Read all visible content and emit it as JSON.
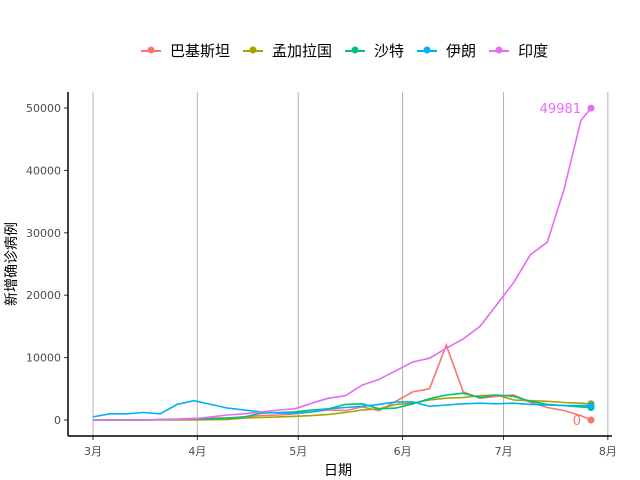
{
  "chart_data": {
    "type": "line",
    "xlabel": "日期",
    "ylabel": "新增确诊病例",
    "x_ticks": [
      "3月",
      "4月",
      "5月",
      "6月",
      "7月",
      "8月"
    ],
    "y_ticks": [
      0,
      10000,
      20000,
      30000,
      40000,
      50000
    ],
    "ylim": [
      0,
      50000
    ],
    "grid": "vertical",
    "legend": "top",
    "x": [
      "03-01",
      "03-06",
      "03-11",
      "03-16",
      "03-21",
      "03-26",
      "03-31",
      "04-05",
      "04-10",
      "04-15",
      "04-20",
      "04-25",
      "04-30",
      "05-05",
      "05-10",
      "05-15",
      "05-20",
      "05-25",
      "05-30",
      "06-04",
      "06-09",
      "06-14",
      "06-19",
      "06-24",
      "06-29",
      "07-04",
      "07-09",
      "07-14",
      "07-19",
      "07-24",
      "07-27"
    ],
    "series": [
      {
        "name": "巴基斯坦",
        "color": "#F8766D",
        "end_label": "0",
        "values": [
          0,
          0,
          0,
          20,
          100,
          150,
          250,
          300,
          300,
          500,
          700,
          800,
          1000,
          1300,
          1600,
          1500,
          2100,
          1500,
          3000,
          4500,
          5000,
          12000,
          4500,
          3500,
          3800,
          4000,
          2800,
          2000,
          1500,
          700,
          0
        ]
      },
      {
        "name": "孟加拉国",
        "color": "#A3A500",
        "values": [
          0,
          0,
          0,
          0,
          5,
          10,
          20,
          50,
          100,
          300,
          400,
          500,
          600,
          700,
          900,
          1200,
          1600,
          1800,
          2500,
          2700,
          3200,
          3500,
          3600,
          3900,
          4000,
          3200,
          3100,
          3000,
          2800,
          2700,
          2600
        ]
      },
      {
        "name": "沙特",
        "color": "#00BF7D",
        "values": [
          0,
          0,
          5,
          20,
          50,
          100,
          150,
          200,
          300,
          500,
          1100,
          1200,
          1300,
          1600,
          1800,
          2500,
          2600,
          1800,
          1900,
          2600,
          3400,
          4000,
          4300,
          3600,
          4000,
          3800,
          3000,
          2500,
          2300,
          2100,
          2000
        ]
      },
      {
        "name": "伊朗",
        "color": "#00B0F6",
        "values": [
          500,
          1000,
          1000,
          1200,
          1000,
          2500,
          3100,
          2500,
          1900,
          1600,
          1300,
          1100,
          1100,
          1300,
          1800,
          2000,
          2200,
          2500,
          2900,
          2900,
          2200,
          2400,
          2600,
          2700,
          2600,
          2700,
          2500,
          2400,
          2300,
          2300,
          2300
        ]
      },
      {
        "name": "印度",
        "color": "#E76BF3",
        "end_label": "49981",
        "values": [
          0,
          0,
          5,
          10,
          50,
          100,
          200,
          500,
          800,
          1000,
          1300,
          1600,
          1800,
          2700,
          3500,
          3900,
          5600,
          6500,
          7900,
          9300,
          9900,
          11500,
          13000,
          15000,
          18500,
          22000,
          26500,
          28500,
          37000,
          48000,
          49981
        ]
      }
    ]
  }
}
